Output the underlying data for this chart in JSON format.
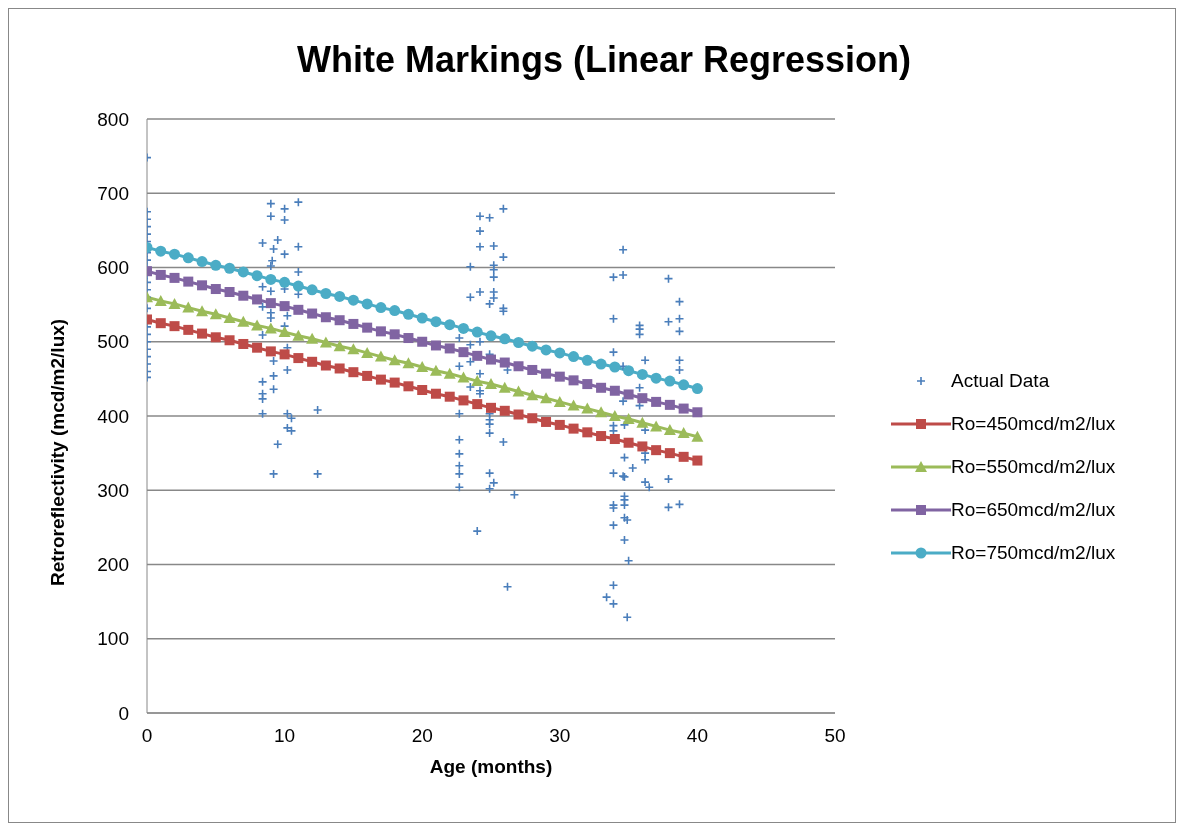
{
  "chart_data": {
    "type": "scatter",
    "title": "White Markings (Linear Regression)",
    "xlabel": "Age (months)",
    "ylabel": "Retroreflectivity (mcd/m2/lux)",
    "xlim": [
      0,
      50
    ],
    "xticks": [
      0,
      10,
      20,
      30,
      40,
      50
    ],
    "ylim": [
      0,
      800
    ],
    "yticks": [
      0,
      100,
      200,
      300,
      400,
      500,
      600,
      700,
      800
    ],
    "grid": "y",
    "legend": "right",
    "series": [
      {
        "name": "Actual Data",
        "marker": "cross",
        "color": "#4a7ebb",
        "x": [
          0,
          0,
          0,
          0,
          0,
          0,
          0,
          0,
          0,
          0,
          0,
          0,
          0,
          0,
          0,
          0,
          0,
          0,
          0,
          0,
          0,
          0,
          9.0,
          10.0,
          11.0,
          9.0,
          10.0,
          8.4,
          9.5,
          9.2,
          10.0,
          11.0,
          9.1,
          9.0,
          11.0,
          8.4,
          9.0,
          10.0,
          11.0,
          8.4,
          9.0,
          10.2,
          9.0,
          10.0,
          8.4,
          10.2,
          9.2,
          10.2,
          9.2,
          8.4,
          9.2,
          8.4,
          8.4,
          8.4,
          10.2,
          10.5,
          12.4,
          10.2,
          10.5,
          9.5,
          9.2,
          12.4,
          24.2,
          24.9,
          25.9,
          24.2,
          24.2,
          25.2,
          25.9,
          23.5,
          25.2,
          25.2,
          25.2,
          23.5,
          24.2,
          25.2,
          25.2,
          24.9,
          25.9,
          25.9,
          22.7,
          23.5,
          24.2,
          24.9,
          22.7,
          23.5,
          24.2,
          26.2,
          23.5,
          24.2,
          24.2,
          22.7,
          24.9,
          24.9,
          24.9,
          24.9,
          25.9,
          22.7,
          22.7,
          22.7,
          22.7,
          24.9,
          25.2,
          22.7,
          24.9,
          26.7,
          24.0,
          26.2,
          34.6,
          33.9,
          34.6,
          37.9,
          38.7,
          33.9,
          35.8,
          35.8,
          35.8,
          37.9,
          38.7,
          38.7,
          33.9,
          36.2,
          38.7,
          38.7,
          34.6,
          35.8,
          34.6,
          35.8,
          33.9,
          33.9,
          34.7,
          36.2,
          34.7,
          36.2,
          36.2,
          35.3,
          33.9,
          34.6,
          34.7,
          36.2,
          36.5,
          37.9,
          34.7,
          34.7,
          34.7,
          33.9,
          33.9,
          37.9,
          38.7,
          34.7,
          34.9,
          33.9,
          34.7,
          35.0,
          33.9,
          33.4,
          33.9,
          34.9
        ],
        "values": [
          748,
          675,
          665,
          655,
          645,
          635,
          620,
          610,
          600,
          590,
          580,
          570,
          560,
          545,
          520,
          510,
          500,
          490,
          480,
          470,
          460,
          452,
          686,
          679,
          688,
          669,
          664,
          633,
          637,
          625,
          618,
          628,
          609,
          602,
          594,
          574,
          568,
          571,
          564,
          547,
          539,
          535,
          532,
          521,
          509,
          492,
          474,
          462,
          454,
          446,
          436,
          430,
          423,
          403,
          403,
          397,
          408,
          384,
          380,
          362,
          322,
          322,
          669,
          667,
          679,
          649,
          628,
          629,
          614,
          601,
          603,
          597,
          587,
          560,
          567,
          567,
          559,
          551,
          545,
          541,
          505,
          496,
          500,
          483,
          467,
          473,
          457,
          462,
          439,
          434,
          430,
          403,
          403,
          395,
          389,
          377,
          365,
          368,
          349,
          333,
          322,
          323,
          310,
          304,
          302,
          294,
          245,
          170,
          624,
          587,
          590,
          585,
          554,
          531,
          522,
          517,
          510,
          527,
          531,
          514,
          486,
          475,
          475,
          462,
          467,
          438,
          420,
          414,
          387,
          380,
          388,
          381,
          344,
          350,
          341,
          330,
          323,
          319,
          318,
          311,
          304,
          315,
          292,
          287,
          280,
          280,
          276,
          277,
          281,
          263,
          260,
          253,
          233,
          205,
          172,
          156,
          147,
          129
        ]
      },
      {
        "name": "Ro=450mcd/m2/lux",
        "type": "line",
        "marker": "square",
        "color": "#be4b48",
        "x": [
          0,
          1,
          2,
          3,
          4,
          5,
          6,
          7,
          8,
          9,
          10,
          11,
          12,
          13,
          14,
          15,
          16,
          17,
          18,
          19,
          20,
          21,
          22,
          23,
          24,
          25,
          26,
          27,
          28,
          29,
          30,
          31,
          32,
          33,
          34,
          35,
          36,
          37,
          38,
          39,
          40
        ],
        "values": [
          530,
          525,
          521,
          516,
          511,
          506,
          502,
          497,
          492,
          487,
          483,
          478,
          473,
          468,
          464,
          459,
          454,
          449,
          445,
          440,
          435,
          430,
          426,
          421,
          416,
          411,
          407,
          402,
          397,
          392,
          388,
          383,
          378,
          373,
          369,
          364,
          359,
          354,
          350,
          345,
          340
        ]
      },
      {
        "name": "Ro=550mcd/m2/lux",
        "type": "line",
        "marker": "triangle",
        "color": "#9bbb59",
        "x": [
          0,
          1,
          2,
          3,
          4,
          5,
          6,
          7,
          8,
          9,
          10,
          11,
          12,
          13,
          14,
          15,
          16,
          17,
          18,
          19,
          20,
          21,
          22,
          23,
          24,
          25,
          26,
          27,
          28,
          29,
          30,
          31,
          32,
          33,
          34,
          35,
          36,
          37,
          38,
          39,
          40
        ],
        "values": [
          560,
          555,
          551,
          546,
          541,
          537,
          532,
          527,
          522,
          518,
          513,
          508,
          504,
          499,
          494,
          490,
          485,
          480,
          475,
          471,
          466,
          461,
          457,
          452,
          447,
          443,
          438,
          433,
          428,
          424,
          419,
          414,
          410,
          405,
          400,
          396,
          391,
          386,
          381,
          377,
          372
        ]
      },
      {
        "name": "Ro=650mcd/m2/lux",
        "type": "line",
        "marker": "square",
        "color": "#8064a2",
        "x": [
          0,
          1,
          2,
          3,
          4,
          5,
          6,
          7,
          8,
          9,
          10,
          11,
          12,
          13,
          14,
          15,
          16,
          17,
          18,
          19,
          20,
          21,
          22,
          23,
          24,
          25,
          26,
          27,
          28,
          29,
          30,
          31,
          32,
          33,
          34,
          35,
          36,
          37,
          38,
          39,
          40
        ],
        "values": [
          595,
          590,
          586,
          581,
          576,
          571,
          567,
          562,
          557,
          552,
          548,
          543,
          538,
          533,
          529,
          524,
          519,
          514,
          510,
          505,
          500,
          495,
          491,
          486,
          481,
          476,
          472,
          467,
          462,
          457,
          453,
          448,
          443,
          438,
          434,
          429,
          424,
          419,
          415,
          410,
          405
        ]
      },
      {
        "name": "Ro=750mcd/m2/lux",
        "type": "line",
        "marker": "circle",
        "color": "#4bacc6",
        "x": [
          0,
          1,
          2,
          3,
          4,
          5,
          6,
          7,
          8,
          9,
          10,
          11,
          12,
          13,
          14,
          15,
          16,
          17,
          18,
          19,
          20,
          21,
          22,
          23,
          24,
          25,
          26,
          27,
          28,
          29,
          30,
          31,
          32,
          33,
          34,
          35,
          36,
          37,
          38,
          39,
          40
        ],
        "values": [
          627,
          622,
          618,
          613,
          608,
          603,
          599,
          594,
          589,
          584,
          580,
          575,
          570,
          565,
          561,
          556,
          551,
          546,
          542,
          537,
          532,
          527,
          523,
          518,
          513,
          508,
          504,
          499,
          494,
          489,
          485,
          480,
          475,
          470,
          466,
          461,
          456,
          451,
          447,
          442,
          437
        ]
      }
    ]
  }
}
